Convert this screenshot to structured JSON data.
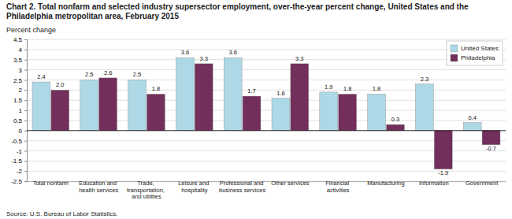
{
  "chart_data": {
    "type": "bar",
    "title": "Chart 2. Total nonfarm and selected industry supersector employment, over-the-year percent change, United States and the Philadelphia metropolitan area, February 2015",
    "ylabel": "Percent change",
    "annotations": [
      "Source: U.S. Bureau of Labor Statistics."
    ],
    "categories": [
      "Total nonfarm",
      "Education and\nhealth services",
      "Trade,\ntransportation,\nand utilities",
      "Leisure and\nhospitality",
      "Professional and\nbusiness services",
      "Other services",
      "Financial\nactivities",
      "Manufacturing",
      "Information",
      "Government"
    ],
    "series": [
      {
        "name": "United States",
        "color": "#ADD8E6",
        "values": [
          2.4,
          2.5,
          2.5,
          3.6,
          3.6,
          1.6,
          1.9,
          1.8,
          2.3,
          0.4
        ]
      },
      {
        "name": "Philadelphia",
        "color": "#722F5B",
        "values": [
          2.0,
          2.6,
          1.8,
          3.3,
          1.7,
          3.3,
          1.8,
          0.3,
          -1.9,
          -0.7
        ],
        "value_labels": [
          "2.0",
          "2.6",
          "1.8",
          "3.3",
          "1.7",
          "3.3",
          "1.8",
          "0.3",
          "-1.9",
          "-0.7"
        ]
      }
    ],
    "ylim": [
      -2.5,
      4.5
    ],
    "yticks": [
      -2.5,
      -2,
      -1.5,
      -1,
      -0.5,
      0,
      0.5,
      1,
      1.5,
      2,
      2.5,
      3,
      3.5,
      4,
      4.5
    ],
    "grid": true,
    "legend": "upper right",
    "data_labels": true
  }
}
